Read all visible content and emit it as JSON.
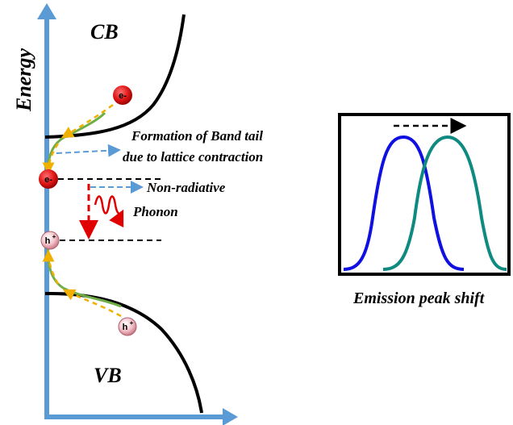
{
  "axis": {
    "ylabel": "Energy"
  },
  "bands": {
    "conduction": "CB",
    "valence": "VB"
  },
  "annotations": {
    "band_tail_line1": "Formation of Band tail",
    "band_tail_line2": "due to lattice contraction",
    "non_radiative": "Non-radiative",
    "phonon": "Phonon"
  },
  "carriers": {
    "electron": "e-",
    "hole": "h",
    "hole_sup": "+"
  },
  "inset": {
    "caption": "Emission peak shift"
  },
  "colors": {
    "axis": "#5b9bd5",
    "band_edge": "#000000",
    "band_tail": "#70ad47",
    "carrier_path": "#f0b000",
    "blue_arrow": "#5b9bd5",
    "red_arrow": "#e00000",
    "peak_before": "#1010e0",
    "peak_after": "#0f8a80",
    "electron": "#e01818",
    "hole": "#f0b8c0"
  }
}
